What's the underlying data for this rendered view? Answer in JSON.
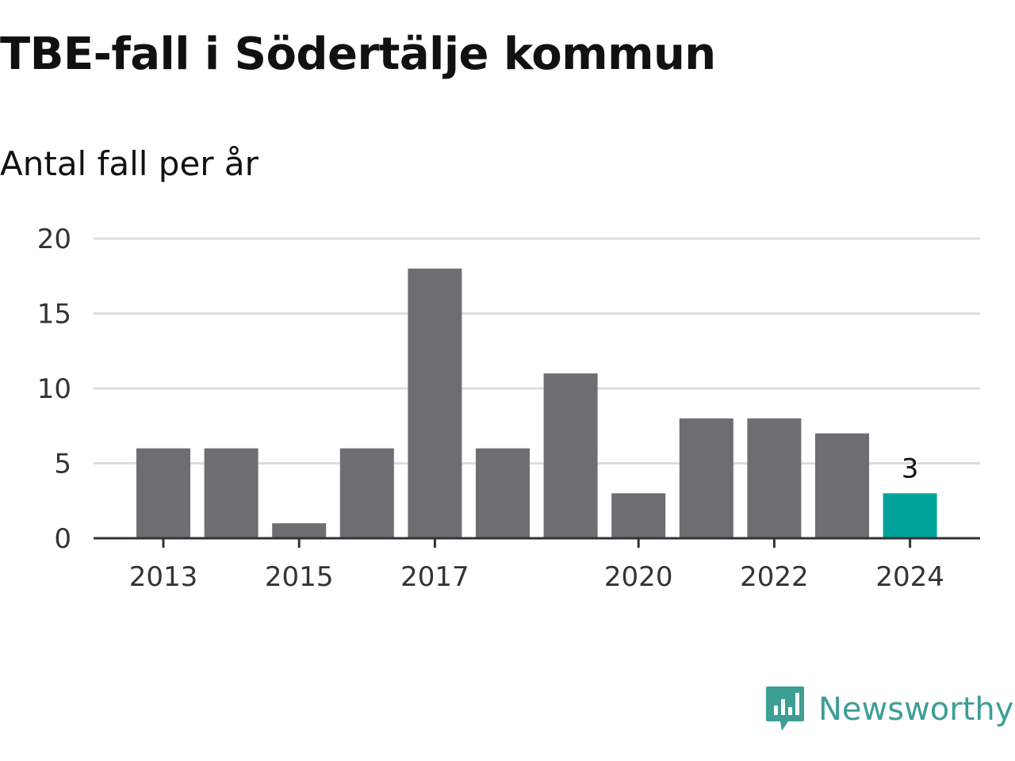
{
  "header": {
    "title": "TBE-fall i Södertälje kommun",
    "subtitle": "Antal fall per år"
  },
  "brand": {
    "name": "Newsworthy",
    "icon": "newsworthy-logo-icon",
    "color": "#3c9e94"
  },
  "chart_data": {
    "type": "bar",
    "categories": [
      "2013",
      "2014",
      "2015",
      "2016",
      "2017",
      "2018",
      "2019",
      "2020",
      "2021",
      "2022",
      "2023",
      "2024"
    ],
    "values": [
      6,
      6,
      1,
      6,
      18,
      6,
      11,
      3,
      8,
      8,
      7,
      3
    ],
    "x_tick_labels": [
      "2013",
      "2015",
      "2017",
      "2020",
      "2022",
      "2024"
    ],
    "y_ticks": [
      0,
      5,
      10,
      15,
      20
    ],
    "ylim": [
      0,
      20
    ],
    "grid": true,
    "highlight": {
      "category": "2024",
      "label": "3"
    },
    "colors": {
      "bar": "#6e6d72",
      "highlight": "#00a39a",
      "grid": "#dddddd",
      "axis": "#333333"
    }
  }
}
